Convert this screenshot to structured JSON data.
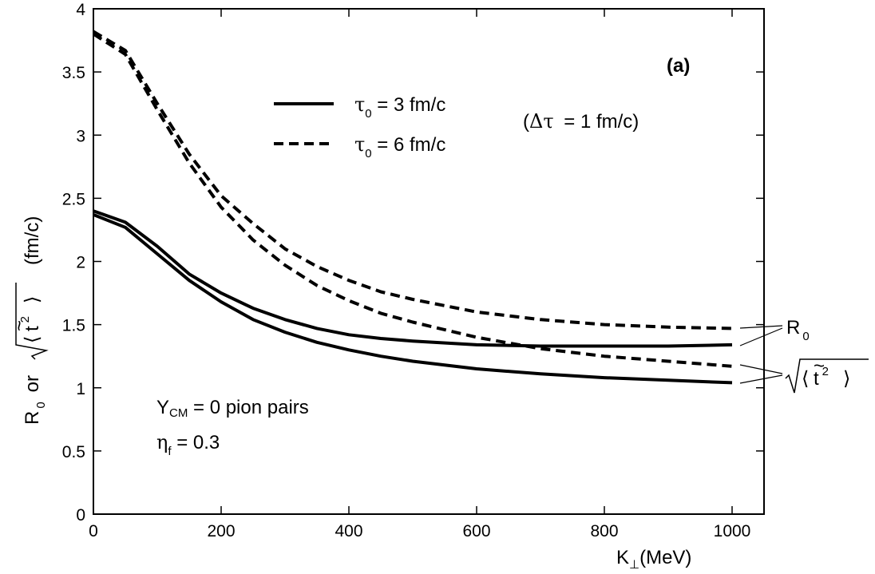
{
  "chart_data": {
    "type": "line",
    "panel_label": "(a)",
    "xlabel_main": "K",
    "xlabel_sub": "⊥",
    "xlabel_unit": "(MeV)",
    "ylabel_r": "R",
    "ylabel_r_sub": "0",
    "ylabel_or": "or",
    "ylabel_unit": "(fm/c)",
    "xlim": [
      0,
      1050
    ],
    "ylim": [
      0,
      4
    ],
    "xticks": [
      0,
      200,
      400,
      600,
      800,
      1000
    ],
    "yticks": [
      0,
      0.5,
      1,
      1.5,
      2,
      2.5,
      3,
      3.5,
      4
    ],
    "ytick_labels": [
      "0",
      "0.5",
      "1",
      "1.5",
      "2",
      "2.5",
      "3",
      "3.5",
      "4"
    ],
    "legend": [
      {
        "symbol": "τ",
        "sub": "0",
        "text": " = 3 fm/c",
        "style": "solid"
      },
      {
        "symbol": "τ",
        "sub": "0",
        "text": " = 6 fm/c",
        "style": "dashed"
      }
    ],
    "dtau_note": {
      "open": "(",
      "symbol": "Δτ",
      "text": " = 1 fm/c)"
    },
    "conditions": [
      {
        "main": "Y",
        "sub": "CM",
        "text": " = 0   pion pairs"
      },
      {
        "main": "η",
        "sub": "f",
        "text": " = 0.3"
      }
    ],
    "curve_labels": {
      "r0": {
        "main": "R",
        "sub": "0"
      },
      "t2": {
        "text": "t",
        "sup": "2"
      }
    },
    "series": [
      {
        "name": "R 0",
        "style": "solid",
        "x": [
          0,
          50,
          100,
          150,
          200,
          250,
          300,
          350,
          400,
          450,
          500,
          600,
          700,
          800,
          900,
          1000
        ],
        "y": [
          2.4,
          2.31,
          2.12,
          1.9,
          1.75,
          1.63,
          1.54,
          1.47,
          1.42,
          1.39,
          1.37,
          1.34,
          1.33,
          1.33,
          1.33,
          1.34
        ]
      },
      {
        "name": "√⟨t̃²⟩",
        "style": "solid",
        "x": [
          0,
          50,
          100,
          150,
          200,
          250,
          300,
          350,
          400,
          450,
          500,
          600,
          700,
          800,
          900,
          1000
        ],
        "y": [
          2.37,
          2.27,
          2.06,
          1.85,
          1.68,
          1.54,
          1.44,
          1.36,
          1.3,
          1.25,
          1.21,
          1.15,
          1.11,
          1.08,
          1.06,
          1.04
        ]
      },
      {
        "name": "R 0",
        "style": "dashed",
        "x": [
          0,
          50,
          100,
          150,
          200,
          250,
          300,
          350,
          400,
          450,
          500,
          600,
          700,
          800,
          900,
          1000
        ],
        "y": [
          3.82,
          3.67,
          3.25,
          2.85,
          2.52,
          2.3,
          2.1,
          1.96,
          1.85,
          1.76,
          1.7,
          1.6,
          1.54,
          1.5,
          1.48,
          1.47
        ]
      },
      {
        "name": "√⟨t̃²⟩",
        "style": "dashed",
        "x": [
          0,
          50,
          100,
          150,
          200,
          250,
          300,
          350,
          400,
          450,
          500,
          600,
          700,
          800,
          900,
          1000
        ],
        "y": [
          3.8,
          3.64,
          3.2,
          2.78,
          2.43,
          2.17,
          1.97,
          1.81,
          1.69,
          1.59,
          1.52,
          1.4,
          1.31,
          1.25,
          1.21,
          1.17
        ]
      }
    ]
  }
}
